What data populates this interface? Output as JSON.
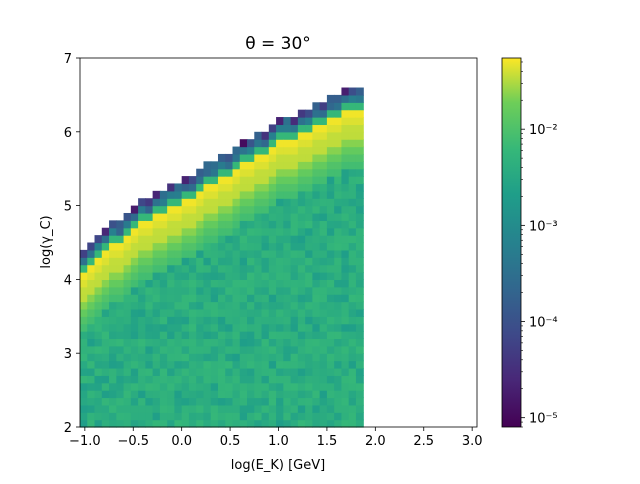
{
  "chart_data": {
    "type": "heatmap",
    "title": "θ = 30°",
    "xlabel": "log(E_K) [GeV]",
    "ylabel": "log(γ_C)",
    "xlim": [
      -1.05,
      3.05
    ],
    "ylim": [
      2,
      7
    ],
    "x_ticks": [
      "−1.0",
      "−0.5",
      "0.0",
      "0.5",
      "1.0",
      "1.5",
      "2.0",
      "2.5",
      "3.0"
    ],
    "x_tick_values": [
      -1.0,
      -0.5,
      0.0,
      0.5,
      1.0,
      1.5,
      2.0,
      2.5,
      3.0
    ],
    "y_ticks": [
      "2",
      "3",
      "4",
      "5",
      "6",
      "7"
    ],
    "y_tick_values": [
      2,
      3,
      4,
      5,
      6,
      7
    ],
    "colorbar": {
      "scale": "log",
      "colormap": "viridis",
      "range": [
        8e-06,
        0.055
      ],
      "tick_values": [
        1e-05,
        0.0001,
        0.001,
        0.01
      ],
      "tick_labels": [
        "10⁻⁵",
        "10⁻⁴",
        "10⁻³",
        "10⁻²"
      ]
    },
    "data_x_range": [
      -1.05,
      1.875
    ],
    "bin_width_x": 0.075,
    "bin_height_y": 0.1,
    "boundary": {
      "description": "upper edge of populated region in log(γ_C) as function of log(E_K)",
      "points": [
        [
          -1.05,
          4.33
        ],
        [
          -0.5,
          4.95
        ],
        [
          0.0,
          5.3
        ],
        [
          0.5,
          5.7
        ],
        [
          1.0,
          6.1
        ],
        [
          1.5,
          6.4
        ],
        [
          1.875,
          6.6
        ]
      ]
    },
    "ridge_value": 0.05,
    "bulk_value_range": [
      0.002,
      0.006
    ]
  }
}
